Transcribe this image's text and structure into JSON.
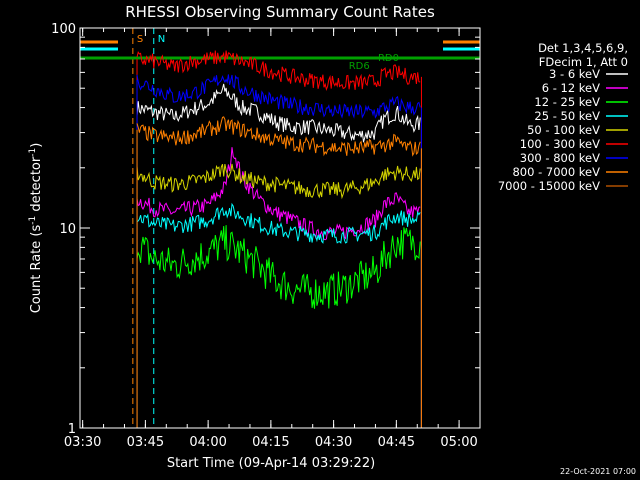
{
  "chart_data": {
    "type": "line",
    "title": "RHESSI Observing Summary Count Rates",
    "xlabel": "Start Time (09-Apr-14 03:29:22)",
    "ylabel": "Count Rate (s",
    "ylabel_sup": "-1",
    "ylabel_tail": " detector",
    "ylabel_close": ")",
    "y_scale": "log",
    "ylim": [
      1,
      100
    ],
    "xlim": [
      "03:29:22",
      "05:05:00"
    ],
    "x_ticks": [
      "03:30",
      "03:45",
      "04:00",
      "04:15",
      "04:30",
      "04:45",
      "05:00"
    ],
    "y_ticks": [
      "1",
      "10",
      "100"
    ],
    "legend_placement": "right",
    "legend_header": [
      "Det 1,3,4,5,6,9,",
      "FDecim 1, Att 0"
    ],
    "footer_date": "22-Oct-2021 07:00",
    "annotations": [
      {
        "text": "S",
        "time": "03:42",
        "color": "#ff8000"
      },
      {
        "text": "N",
        "time": "03:47",
        "color": "#00ffff"
      },
      {
        "text": "RD6",
        "time": "04:36",
        "color": "#00a000"
      },
      {
        "text": "RD0",
        "time": "04:43",
        "color": "#00a000"
      }
    ],
    "series": [
      {
        "name": "3 - 6 keV",
        "color": "#ffffff",
        "x": [
          "03:43",
          "03:47",
          "03:52",
          "03:56",
          "04:00",
          "04:04",
          "04:08",
          "04:12",
          "04:16",
          "04:20",
          "04:24",
          "04:28",
          "04:32",
          "04:36",
          "04:40",
          "04:42",
          "04:45",
          "04:48",
          "04:51"
        ],
        "y": [
          40,
          38,
          36,
          39,
          42,
          49,
          40,
          38,
          34,
          32,
          32,
          31,
          30,
          29,
          30,
          35,
          38,
          33,
          33
        ]
      },
      {
        "name": "6 - 12 keV",
        "color": "#ff00ff",
        "x": [
          "03:43",
          "03:47",
          "03:52",
          "03:56",
          "04:00",
          "04:04",
          "04:06",
          "04:08",
          "04:12",
          "04:16",
          "04:20",
          "04:24",
          "04:28",
          "04:32",
          "04:36",
          "04:40",
          "04:42",
          "04:45",
          "04:48",
          "04:51"
        ],
        "y": [
          14,
          12.5,
          12,
          12.5,
          13,
          16,
          25,
          18,
          14,
          12,
          11,
          10,
          9.5,
          9.5,
          10,
          11,
          13,
          14,
          12,
          12
        ]
      },
      {
        "name": "12 - 25 keV",
        "color": "#00ff00",
        "x": [
          "03:43",
          "03:47",
          "03:52",
          "03:56",
          "04:00",
          "04:04",
          "04:08",
          "04:12",
          "04:16",
          "04:20",
          "04:24",
          "04:28",
          "04:32",
          "04:36",
          "04:40",
          "04:42",
          "04:45",
          "04:48",
          "04:51"
        ],
        "y": [
          8.5,
          7,
          6.5,
          7,
          7.5,
          8.5,
          7.5,
          6.5,
          5.5,
          5,
          4.8,
          4.8,
          5,
          5.5,
          6,
          7,
          8.5,
          8.5,
          8.5
        ]
      },
      {
        "name": "25 - 50 keV",
        "color": "#00ffff",
        "x": [
          "03:43",
          "03:47",
          "03:52",
          "03:56",
          "04:00",
          "04:04",
          "04:08",
          "04:12",
          "04:16",
          "04:20",
          "04:24",
          "04:28",
          "04:32",
          "04:36",
          "04:40",
          "04:42",
          "04:45",
          "04:48",
          "04:51"
        ],
        "y": [
          11.5,
          10.5,
          10.2,
          10.5,
          11,
          12.5,
          11.5,
          10.5,
          9.8,
          9.5,
          9.3,
          9.2,
          9.2,
          9.3,
          9.5,
          10.5,
          11.5,
          11,
          11
        ]
      },
      {
        "name": "50 - 100 keV",
        "color": "#d4d400",
        "x": [
          "03:43",
          "03:47",
          "03:52",
          "03:56",
          "04:00",
          "04:04",
          "04:08",
          "04:12",
          "04:16",
          "04:20",
          "04:24",
          "04:28",
          "04:32",
          "04:36",
          "04:40",
          "04:42",
          "04:45",
          "04:48",
          "04:51"
        ],
        "y": [
          19,
          17,
          16.5,
          17,
          18,
          20,
          18,
          17,
          16.5,
          16,
          15.5,
          15.5,
          15.5,
          16,
          17,
          18.5,
          19,
          18.5,
          18.5
        ]
      },
      {
        "name": "100 - 300 keV",
        "color": "#ff0000",
        "x": [
          "03:43",
          "03:47",
          "03:52",
          "03:56",
          "04:00",
          "04:04",
          "04:08",
          "04:12",
          "04:16",
          "04:20",
          "04:24",
          "04:28",
          "04:32",
          "04:36",
          "04:40",
          "04:42",
          "04:45",
          "04:48",
          "04:51"
        ],
        "y": [
          70,
          68,
          64,
          68,
          70,
          72,
          68,
          64,
          60,
          57,
          55,
          54,
          53,
          53,
          54,
          58,
          60,
          57,
          57
        ]
      },
      {
        "name": "300 - 800 keV",
        "color": "#0000ff",
        "x": [
          "03:43",
          "03:47",
          "03:52",
          "03:56",
          "04:00",
          "04:04",
          "04:08",
          "04:12",
          "04:16",
          "04:20",
          "04:24",
          "04:28",
          "04:32",
          "04:36",
          "04:40",
          "04:42",
          "04:45",
          "04:48",
          "04:51"
        ],
        "y": [
          55,
          50,
          45,
          47,
          51,
          58,
          50,
          46,
          43,
          41,
          40,
          39,
          38,
          38,
          38,
          40,
          42,
          40,
          40
        ]
      },
      {
        "name": "800 - 7000 keV",
        "color": "#ff8000",
        "x": [
          "03:43",
          "03:47",
          "03:52",
          "03:56",
          "04:00",
          "04:04",
          "04:08",
          "04:12",
          "04:16",
          "04:20",
          "04:24",
          "04:28",
          "04:32",
          "04:36",
          "04:40",
          "04:42",
          "04:45",
          "04:48",
          "04:51"
        ],
        "y": [
          31,
          29,
          28,
          29,
          31,
          33,
          31,
          29,
          27.5,
          26.5,
          26,
          25.5,
          25,
          25,
          25.5,
          26,
          27,
          25,
          25
        ]
      },
      {
        "name": "7000 - 15000 keV",
        "color": "#b05000",
        "x": [],
        "y": []
      }
    ]
  }
}
